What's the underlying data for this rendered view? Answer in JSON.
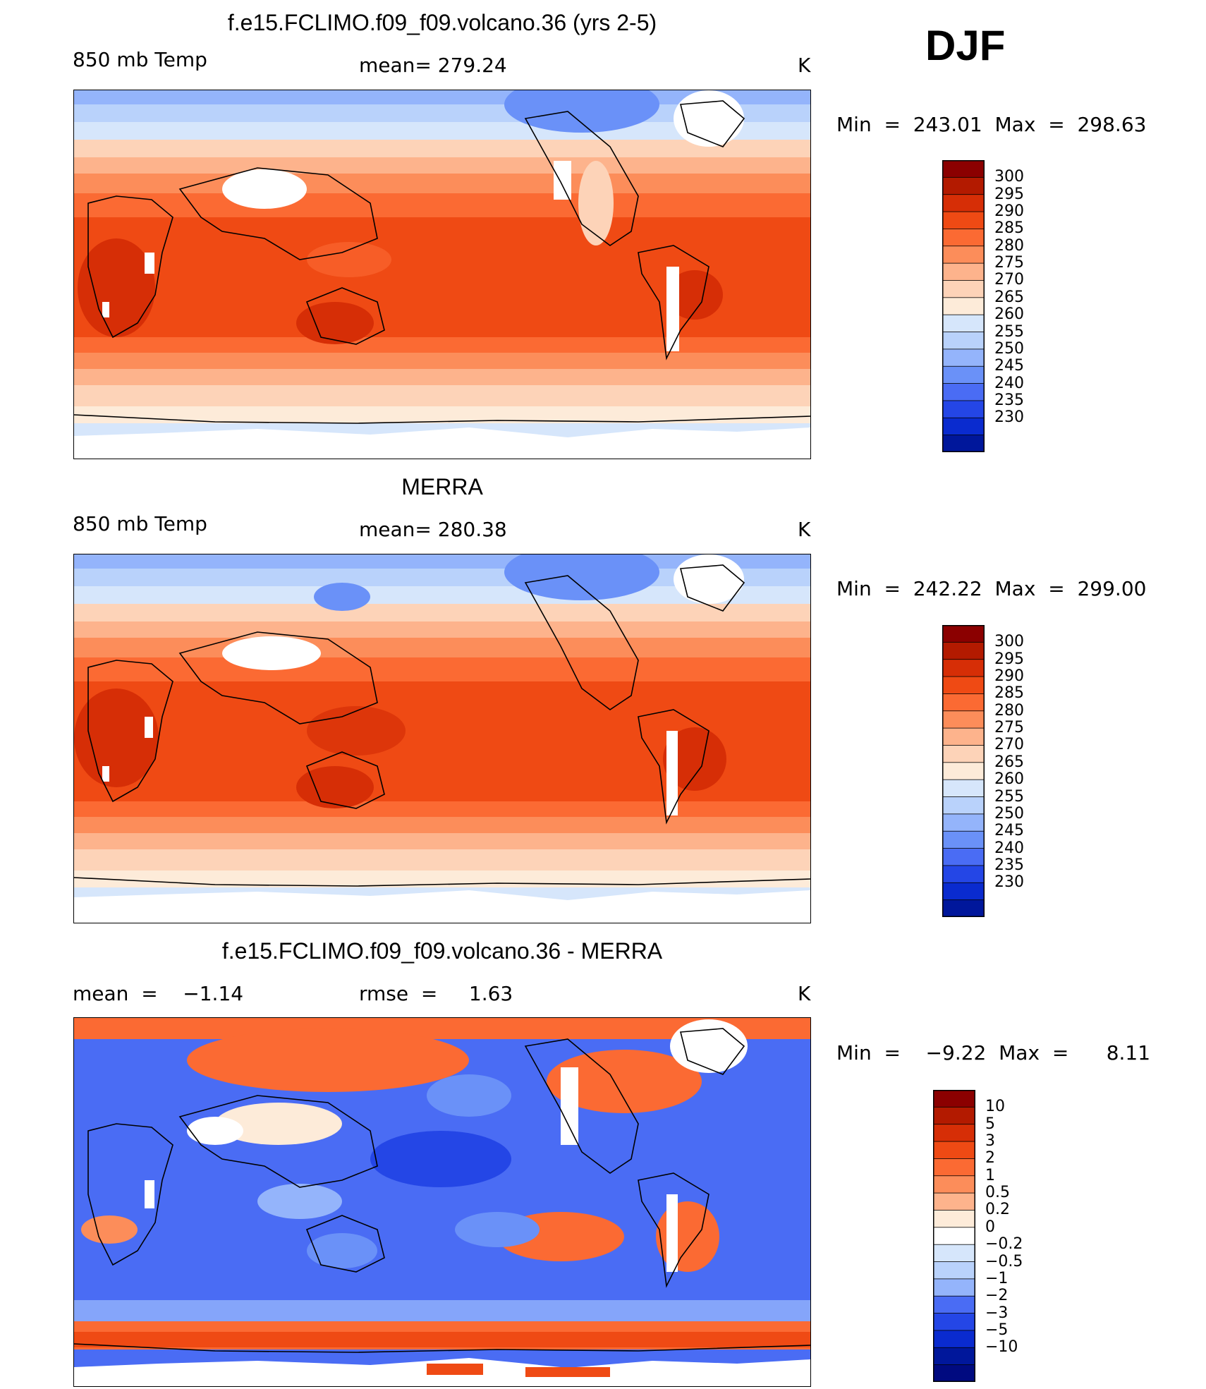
{
  "season": "DJF",
  "panels": [
    {
      "title": "f.e15.FCLIMO.f09_f09.volcano.36 (yrs 2-5)",
      "left": "850 mb Temp",
      "center": "mean= 279.24",
      "units": "K",
      "stats": "Min  =  243.01  Max  =  298.63",
      "map_style": "model"
    },
    {
      "title": "MERRA",
      "left": "850 mb Temp",
      "center": "mean= 280.38",
      "units": "K",
      "stats": "Min  =  242.22  Max  =  299.00",
      "map_style": "obs"
    },
    {
      "title": "f.e15.FCLIMO.f09_f09.volcano.36 - MERRA",
      "left": "mean  =    −1.14",
      "center": "rmse  =     1.63",
      "units": "K",
      "stats": "Min  =    −9.22  Max  =      8.11",
      "map_style": "diff"
    }
  ],
  "colorbars": [
    {
      "labels": [
        "300",
        "295",
        "290",
        "285",
        "280",
        "275",
        "270",
        "265",
        "260",
        "255",
        "250",
        "245",
        "240",
        "235",
        "230"
      ],
      "colors": [
        "#8b0000",
        "#b31a00",
        "#d62e06",
        "#ef4a14",
        "#fb6a33",
        "#fc8d5a",
        "#fdb38c",
        "#fdd3b8",
        "#fdebd9",
        "#d6e6fb",
        "#b9d2fb",
        "#94b4fb",
        "#6a91f8",
        "#4a6cf4",
        "#2446e6",
        "#0a2bcf",
        "#00179b"
      ],
      "note": "temperature levels (K), top=warm"
    },
    {
      "labels": [
        "300",
        "295",
        "290",
        "285",
        "280",
        "275",
        "270",
        "265",
        "260",
        "255",
        "250",
        "245",
        "240",
        "235",
        "230"
      ],
      "colors": [
        "#8b0000",
        "#b31a00",
        "#d62e06",
        "#ef4a14",
        "#fb6a33",
        "#fc8d5a",
        "#fdb38c",
        "#fdd3b8",
        "#fdebd9",
        "#d6e6fb",
        "#b9d2fb",
        "#94b4fb",
        "#6a91f8",
        "#4a6cf4",
        "#2446e6",
        "#0a2bcf",
        "#00179b"
      ]
    },
    {
      "labels": [
        "10",
        "5",
        "3",
        "2",
        "1",
        "0.5",
        "0.2",
        "0",
        "−0.2",
        "−0.5",
        "−1",
        "−2",
        "−3",
        "−5",
        "−10"
      ],
      "colors": [
        "#8b0000",
        "#b31a00",
        "#d62e06",
        "#ef4a14",
        "#fb6a33",
        "#fc8d5a",
        "#fdb38c",
        "#fdebd9",
        "#ffffff",
        "#d6e6fb",
        "#b9d2fb",
        "#94b4fb",
        "#4a6cf4",
        "#2446e6",
        "#0a2bcf",
        "#00179b",
        "#000a80"
      ]
    }
  ]
}
